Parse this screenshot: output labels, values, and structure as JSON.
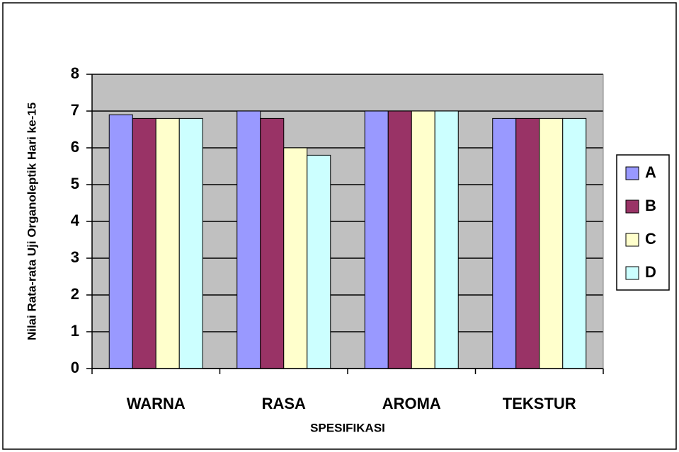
{
  "chart_data": {
    "type": "bar",
    "xlabel": "SPESIFIKASI",
    "ylabel": "Nilai Rata-rata Uji Organoleptik Hari ke-15",
    "categories": [
      "WARNA",
      "RASA",
      "AROMA",
      "TEKSTUR"
    ],
    "series": [
      {
        "name": "A",
        "color": "#9999ff",
        "values": [
          6.9,
          7,
          7,
          6.8
        ]
      },
      {
        "name": "B",
        "color": "#993366",
        "values": [
          6.8,
          6.8,
          7,
          6.8
        ]
      },
      {
        "name": "C",
        "color": "#ffffcc",
        "values": [
          6.8,
          6,
          7,
          6.8
        ]
      },
      {
        "name": "D",
        "color": "#ccffff",
        "values": [
          6.8,
          5.8,
          7,
          6.8
        ]
      }
    ],
    "ylim": [
      0,
      8
    ],
    "yticks": [
      0,
      1,
      2,
      3,
      4,
      5,
      6,
      7,
      8
    ],
    "grid": true,
    "legend": "right",
    "plot_background": "#c0c0c0"
  }
}
